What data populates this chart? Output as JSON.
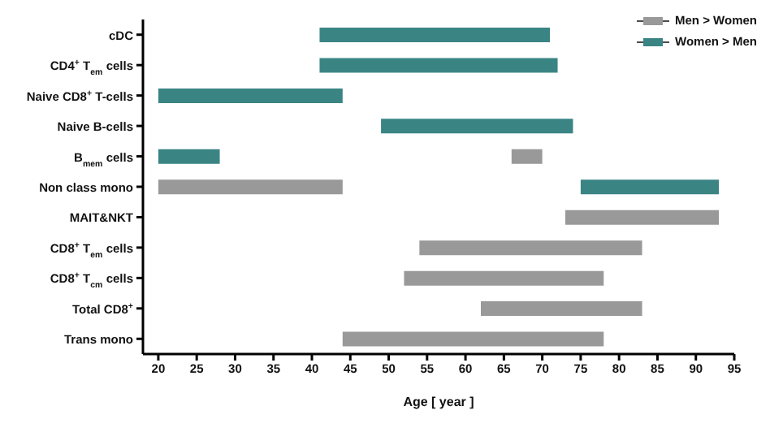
{
  "chart_data": {
    "type": "bar",
    "orientation": "horizontal",
    "xlabel": "Age [ year ]",
    "categories": [
      "cDC",
      "CD4$^{+}$ T$_{em}$ cells",
      "Naive CD8$^{+}$ T-cells",
      "Naive B-cells",
      "B$_{mem}$ cells",
      "Non class mono",
      "MAIT&NKT",
      "CD8$^{+}$ T$_{em}$ cells",
      "CD8$^{+}$ T$_{cm}$ cells",
      "Total CD8$^{+}$",
      "Trans mono"
    ],
    "series": [
      {
        "name": "Men > Women",
        "color": "#999999",
        "base": [
          null,
          null,
          null,
          null,
          66,
          20,
          73,
          54,
          52,
          62,
          44
        ],
        "values": [
          null,
          null,
          null,
          null,
          4,
          24,
          20,
          29,
          26,
          21,
          34
        ]
      },
      {
        "name": "Women > Men",
        "color": "#3a8584",
        "base": [
          41,
          41,
          20,
          49,
          20,
          75,
          null,
          null,
          null,
          null,
          null
        ],
        "values": [
          30,
          31,
          24,
          25,
          8,
          18,
          null,
          null,
          null,
          null,
          null
        ]
      }
    ],
    "xlim": [
      18,
      95
    ],
    "xticks": [
      20,
      25,
      30,
      35,
      40,
      45,
      50,
      55,
      60,
      65,
      70,
      75,
      80,
      85,
      90,
      95
    ],
    "legend": "top right"
  }
}
